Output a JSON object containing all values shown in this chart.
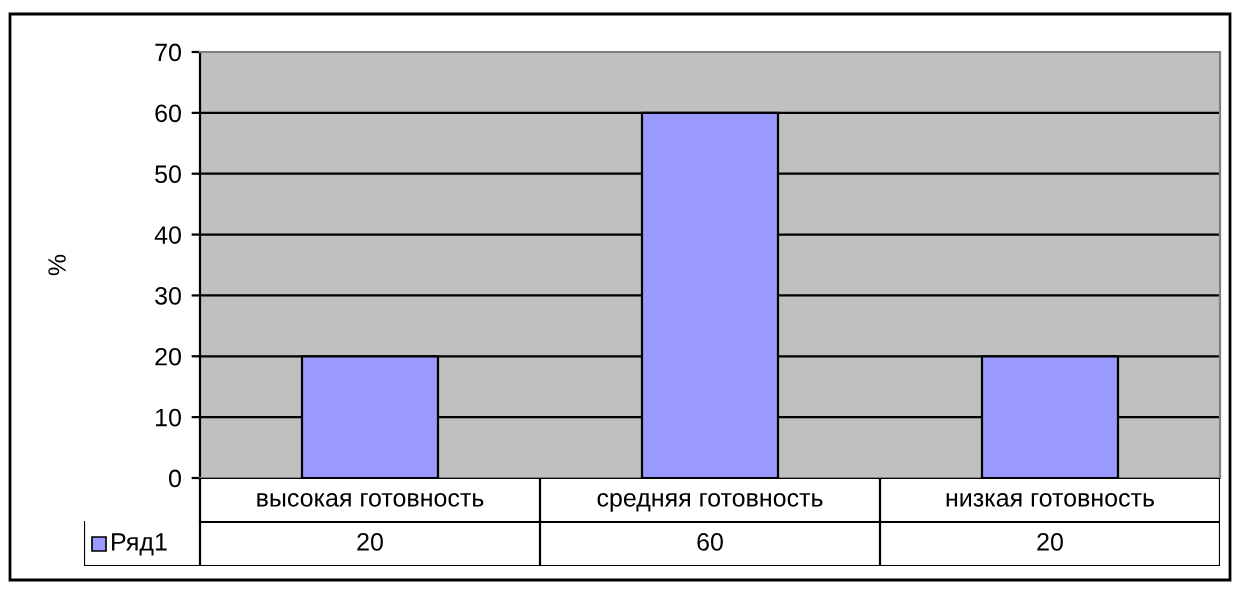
{
  "chart_data": {
    "type": "bar",
    "ylabel": "%",
    "categories": [
      "высокая готовность",
      "средняя готовность",
      "низкая готовность"
    ],
    "series": [
      {
        "name": "Ряд1",
        "color": "#9999ff",
        "values": [
          20,
          60,
          20
        ]
      }
    ],
    "ylim": [
      0,
      70
    ],
    "yticks": [
      0,
      10,
      20,
      30,
      40,
      50,
      60,
      70
    ],
    "grid": "y",
    "legend": "bottom",
    "data_labels": true
  }
}
